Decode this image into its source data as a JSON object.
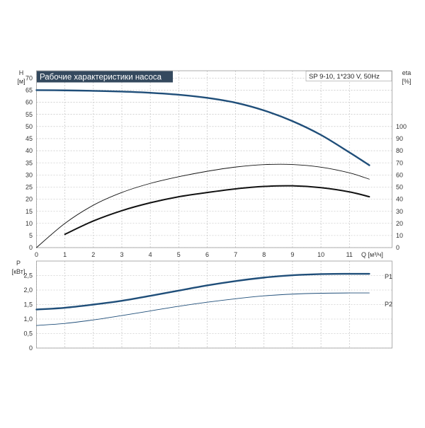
{
  "chart_data": [
    {
      "type": "line",
      "title": "Рабочие характеристики насоса",
      "model_label": "SP 9-10, 1*230 V, 50Hz",
      "xlabel": "Q [м³/ч]",
      "x_ticks": [
        "0",
        "1",
        "2",
        "3",
        "4",
        "5",
        "6",
        "7",
        "8",
        "9",
        "10",
        "11"
      ],
      "xlim": [
        0,
        12.5
      ],
      "ylabel_left": "H",
      "ylabel_left_unit": "[м]",
      "ylim_left": [
        0,
        73
      ],
      "y_ticks_left": [
        "0",
        "5",
        "10",
        "15",
        "20",
        "25",
        "30",
        "35",
        "40",
        "45",
        "50",
        "55",
        "60",
        "65",
        "70"
      ],
      "ylabel_right": "eta",
      "ylabel_right_unit": "[%]",
      "ylim_right": [
        0,
        146
      ],
      "y_ticks_right": [
        "0",
        "10",
        "20",
        "30",
        "40",
        "50",
        "60",
        "70",
        "80",
        "90",
        "100"
      ],
      "grid": true,
      "series": [
        {
          "axis": "left",
          "color": "#1f4e79",
          "width": 2.4,
          "x": [
            0,
            1,
            2,
            3,
            4,
            5,
            6,
            7,
            8,
            9,
            10,
            11,
            11.7
          ],
          "y": [
            65,
            64.9,
            64.7,
            64.4,
            63.9,
            63.1,
            61.8,
            59.8,
            56.6,
            52.2,
            46.5,
            39.3,
            34
          ]
        },
        {
          "axis": "right",
          "color": "#111111",
          "width": 0.9,
          "x": [
            0,
            1,
            2,
            3,
            4,
            5,
            6,
            7,
            8,
            9,
            10,
            11,
            11.7
          ],
          "y": [
            0,
            20,
            35,
            45.5,
            53,
            58.5,
            63,
            66.5,
            68.5,
            68.6,
            66.4,
            61.7,
            56.5
          ]
        },
        {
          "axis": "right",
          "color": "#111111",
          "width": 2.0,
          "x": [
            1,
            2,
            3,
            4,
            5,
            6,
            7,
            8,
            9,
            10,
            11,
            11.7
          ],
          "y": [
            11,
            22,
            30.5,
            37,
            42,
            45.5,
            48.5,
            50.5,
            51,
            49.5,
            46,
            42
          ]
        }
      ]
    },
    {
      "type": "line",
      "ylabel": "P",
      "ylabel_unit": "[кВт]",
      "xlim": [
        0,
        12.5
      ],
      "ylim": [
        0,
        3.0
      ],
      "y_ticks": [
        "0",
        "0,5",
        "1,0",
        "1,5",
        "2,0",
        "2,5"
      ],
      "grid": true,
      "series": [
        {
          "name": "P1",
          "color": "#1f4e79",
          "width": 2.4,
          "x": [
            0,
            1,
            2,
            3,
            4,
            5,
            6,
            7,
            8,
            9,
            10,
            11,
            11.7
          ],
          "y": [
            1.33,
            1.39,
            1.5,
            1.63,
            1.8,
            1.98,
            2.16,
            2.31,
            2.43,
            2.51,
            2.55,
            2.56,
            2.56
          ]
        },
        {
          "name": "P2",
          "color": "#1f4e79",
          "width": 0.9,
          "x": [
            0,
            1,
            2,
            3,
            4,
            5,
            6,
            7,
            8,
            9,
            10,
            11,
            11.7
          ],
          "y": [
            0.78,
            0.85,
            0.97,
            1.12,
            1.28,
            1.44,
            1.58,
            1.7,
            1.8,
            1.86,
            1.89,
            1.9,
            1.9
          ]
        }
      ]
    }
  ]
}
